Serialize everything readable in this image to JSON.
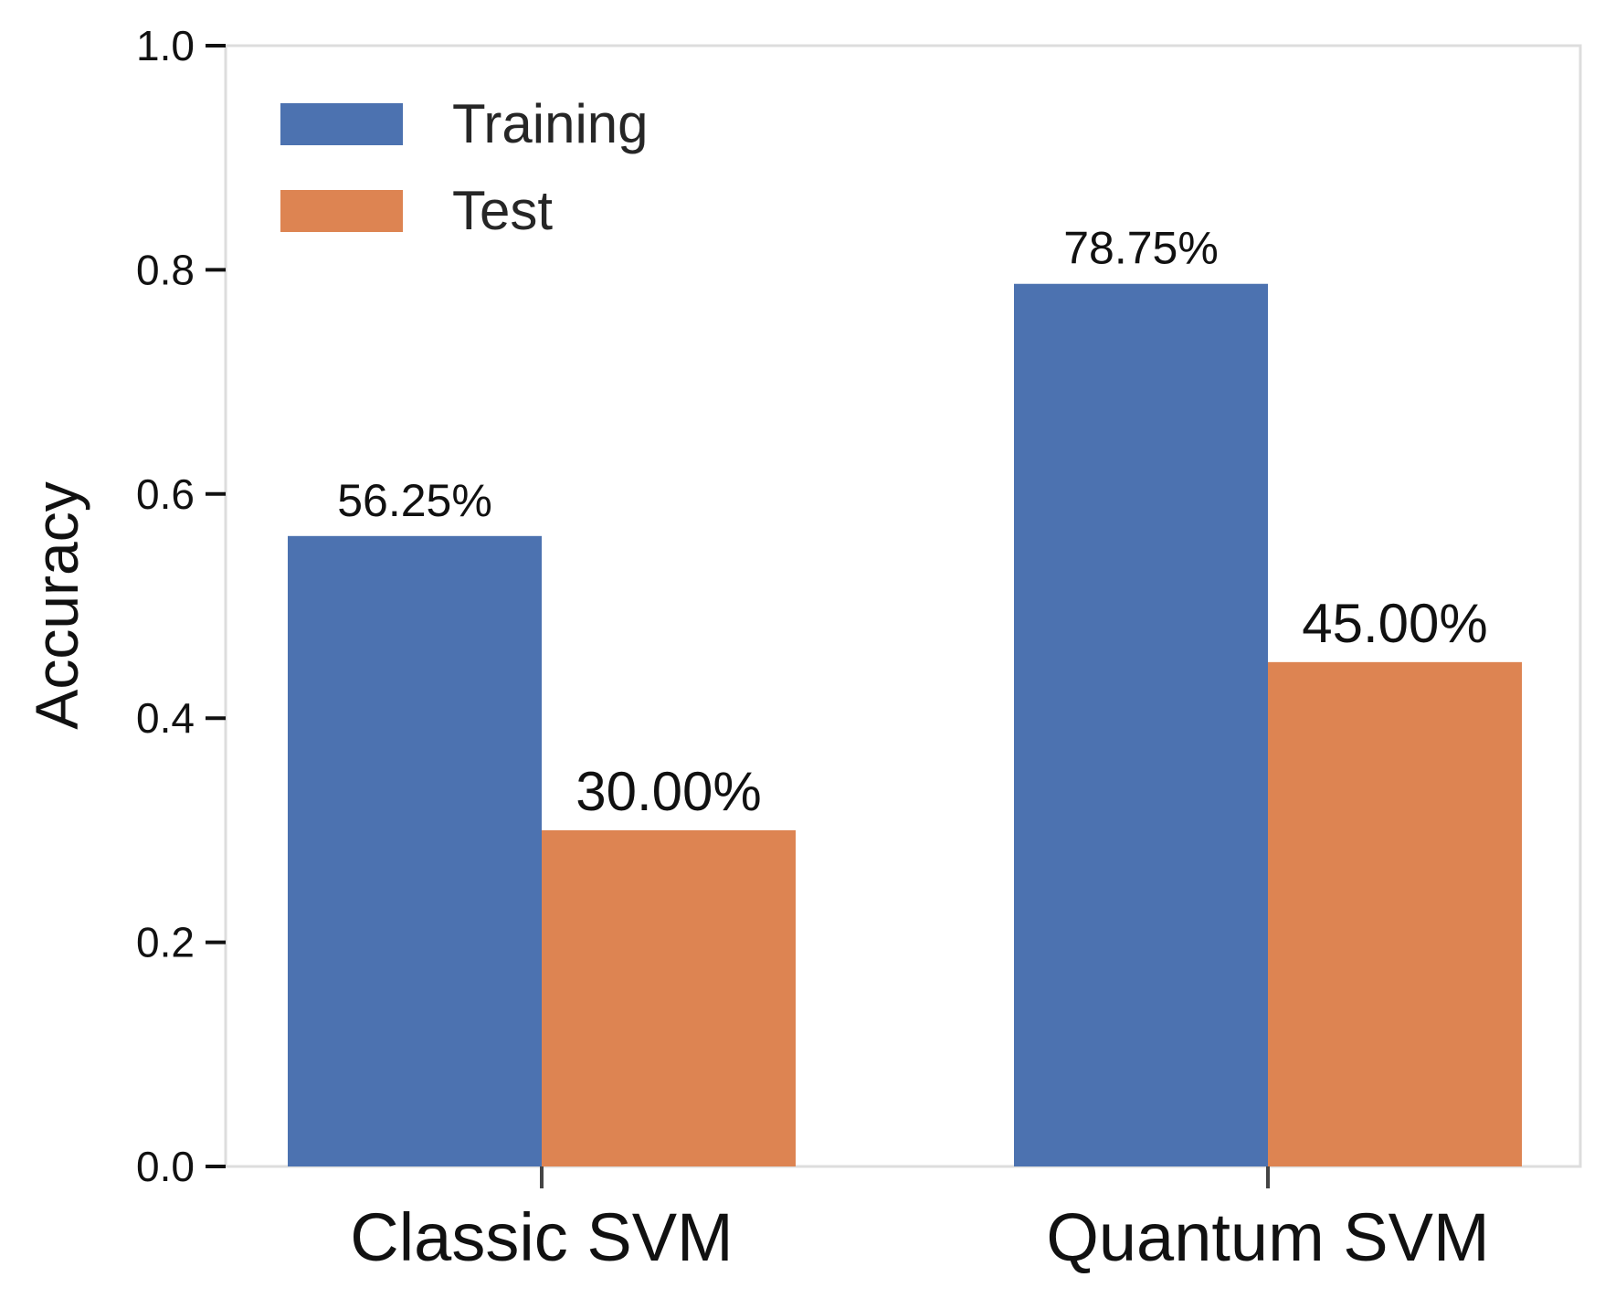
{
  "chart_data": {
    "type": "bar",
    "title": "",
    "xlabel": "",
    "ylabel": "Accuracy",
    "ylim": [
      0,
      1.0
    ],
    "yticks": [
      0.0,
      0.2,
      0.4,
      0.6,
      0.8,
      1.0
    ],
    "ytick_labels": [
      "0.0",
      "0.2",
      "0.4",
      "0.6",
      "0.8",
      "1.0"
    ],
    "categories": [
      "Classic SVM",
      "Quantum SVM"
    ],
    "series": [
      {
        "name": "Training",
        "color": "#4c72b0",
        "values": [
          0.5625,
          0.7875
        ],
        "labels": [
          "56.25%",
          "78.75%"
        ]
      },
      {
        "name": "Test",
        "color": "#dd8452",
        "values": [
          0.3,
          0.45
        ],
        "labels": [
          "30.00%",
          "45.00%"
        ]
      }
    ],
    "legend_position": "top-left",
    "grid": false
  }
}
